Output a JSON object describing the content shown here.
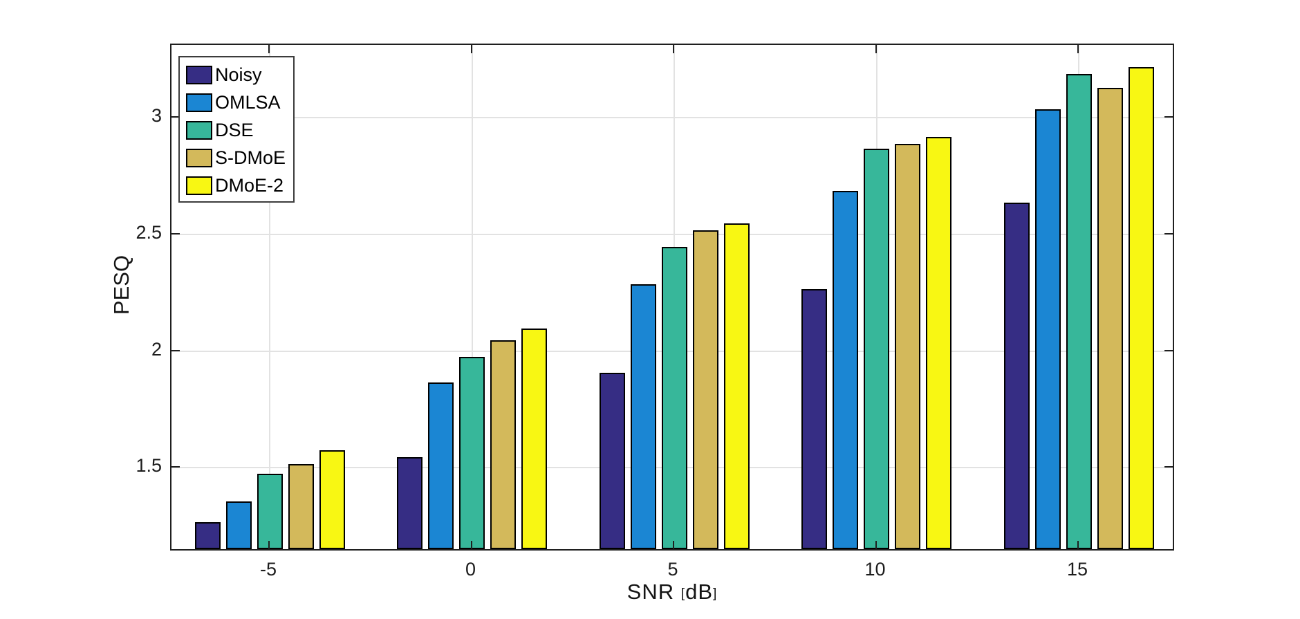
{
  "chart_data": {
    "type": "bar",
    "title": "",
    "xlabel": "SNR [dB]",
    "ylabel": "PESQ",
    "categories": [
      "-5",
      "0",
      "5",
      "10",
      "15"
    ],
    "y_ticks": [
      1.5,
      2,
      2.5,
      3
    ],
    "y_tick_labels": [
      "1.5",
      "2",
      "2.5",
      "3"
    ],
    "ylim": [
      1.14,
      3.31
    ],
    "grid": true,
    "legend_position": "top-left",
    "series": [
      {
        "name": "Noisy",
        "color": "#362d84",
        "values": [
          1.26,
          1.54,
          1.9,
          2.26,
          2.63
        ]
      },
      {
        "name": "OMLSA",
        "color": "#1b86d3",
        "values": [
          1.35,
          1.86,
          2.28,
          2.68,
          3.03
        ]
      },
      {
        "name": "DSE",
        "color": "#37b79a",
        "values": [
          1.47,
          1.97,
          2.44,
          2.86,
          3.18
        ]
      },
      {
        "name": "S-DMoE",
        "color": "#d3b95b",
        "values": [
          1.51,
          2.04,
          2.51,
          2.88,
          3.12
        ]
      },
      {
        "name": "DMoE-2",
        "color": "#f8f713",
        "values": [
          1.57,
          2.09,
          2.54,
          2.91,
          3.21
        ]
      }
    ]
  },
  "colors": {
    "axis": "#1f1f1f",
    "grid": "#e2e2e2",
    "background": "#ffffff"
  }
}
